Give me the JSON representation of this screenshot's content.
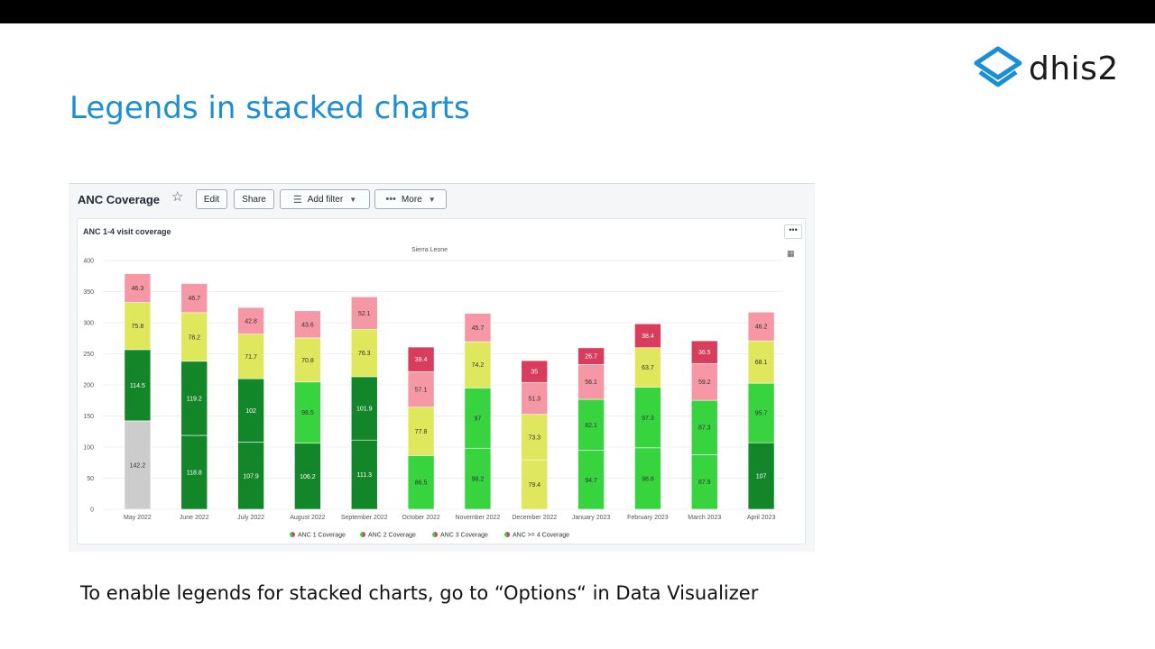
{
  "slide": {
    "title": "Legends in stacked charts",
    "caption": "To enable legends for stacked charts, go to “Options“ in Data Visualizer",
    "logo_text": "dhis2",
    "logo_icon": "dhis2-logo-icon",
    "accent": "#1a8fd6"
  },
  "dashboard": {
    "title": "ANC Coverage",
    "star_icon": "star-icon",
    "buttons": {
      "edit": "Edit",
      "share": "Share",
      "add_filter": "Add filter",
      "more": "More"
    }
  },
  "card": {
    "title": "ANC 1-4 visit coverage",
    "menu_icon": "ellipsis-icon",
    "grid_icon": "grid-icon"
  },
  "chart_data": {
    "type": "bar",
    "stacked": true,
    "subtitle": "Sierra Leone",
    "categories": [
      "May 2022",
      "June 2022",
      "July 2022",
      "August 2022",
      "September 2022",
      "October 2022",
      "November 2022",
      "December 2022",
      "January 2023",
      "February 2023",
      "March 2023",
      "April 2023"
    ],
    "ylim": [
      0,
      400
    ],
    "yticks": [
      0,
      50,
      100,
      150,
      200,
      250,
      300,
      350,
      400
    ],
    "legend_position": "bottom",
    "series": [
      {
        "name": "ANC 1 Coverage",
        "values": [
          142.2,
          118.8,
          107.9,
          106.2,
          111.3,
          86.5,
          98.2,
          79.4,
          94.7,
          98.8,
          87.9,
          107
        ],
        "labels": [
          "142.2",
          "118.8",
          "107.9",
          "106.2",
          "111.3",
          "86.5",
          "98.2",
          "79.4",
          "94.7",
          "98.8",
          "87.9",
          "107"
        ],
        "colors": [
          "#cccccc",
          "#13862a",
          "#13862a",
          "#13862a",
          "#13862a",
          "#37d43f",
          "#37d43f",
          "#dfe75c",
          "#37d43f",
          "#37d43f",
          "#37d43f",
          "#13862a"
        ]
      },
      {
        "name": "ANC 2 Coverage",
        "values": [
          114.5,
          119.2,
          102,
          98.5,
          101.9,
          77.8,
          97,
          73.3,
          82.1,
          97.3,
          87.3,
          95.7
        ],
        "labels": [
          "114.5",
          "119.2",
          "102",
          "98.5",
          "101.9",
          "77.8",
          "97",
          "73.3",
          "82.1",
          "97.3",
          "87.3",
          "95.7"
        ],
        "colors": [
          "#13862a",
          "#13862a",
          "#13862a",
          "#37d43f",
          "#13862a",
          "#dfe75c",
          "#37d43f",
          "#dfe75c",
          "#37d43f",
          "#37d43f",
          "#37d43f",
          "#37d43f"
        ]
      },
      {
        "name": "ANC 3 Coverage",
        "values": [
          75.8,
          78.2,
          71.7,
          70.8,
          76.3,
          57.1,
          74.2,
          51.3,
          56.1,
          63.7,
          59.2,
          68.1
        ],
        "labels": [
          "75.8",
          "78.2",
          "71.7",
          "70.8",
          "76.3",
          "57.1",
          "74.2",
          "51.3",
          "56.1",
          "63.7",
          "59.2",
          "68.1"
        ],
        "colors": [
          "#dfe75c",
          "#dfe75c",
          "#dfe75c",
          "#dfe75c",
          "#dfe75c",
          "#f597a4",
          "#dfe75c",
          "#f597a4",
          "#f597a4",
          "#dfe75c",
          "#f597a4",
          "#dfe75c"
        ]
      },
      {
        "name": "ANC >= 4 Coverage",
        "values": [
          46.3,
          46.7,
          42.8,
          43.6,
          52.1,
          39.4,
          45.7,
          35,
          26.7,
          38.4,
          36.5,
          46.2
        ],
        "labels": [
          "46.3",
          "46.7",
          "42.8",
          "43.6",
          "52.1",
          "39.4",
          "45.7",
          "35",
          "26.7",
          "38.4",
          "36.5",
          "46.2"
        ],
        "colors": [
          "#f597a4",
          "#f597a4",
          "#f597a4",
          "#f597a4",
          "#f597a4",
          "#d83d5b",
          "#f597a4",
          "#d83d5b",
          "#d83d5b",
          "#d83d5b",
          "#d83d5b",
          "#f597a4"
        ]
      }
    ],
    "legend_marker_colors": [
      [
        "#37d43f",
        "#d83d5b"
      ],
      [
        "#37d43f",
        "#d83d5b"
      ],
      [
        "#37d43f",
        "#d83d5b"
      ],
      [
        "#37d43f",
        "#d83d5b"
      ]
    ],
    "dark_label_colors": [
      "#13862a",
      "#d83d5b"
    ]
  }
}
